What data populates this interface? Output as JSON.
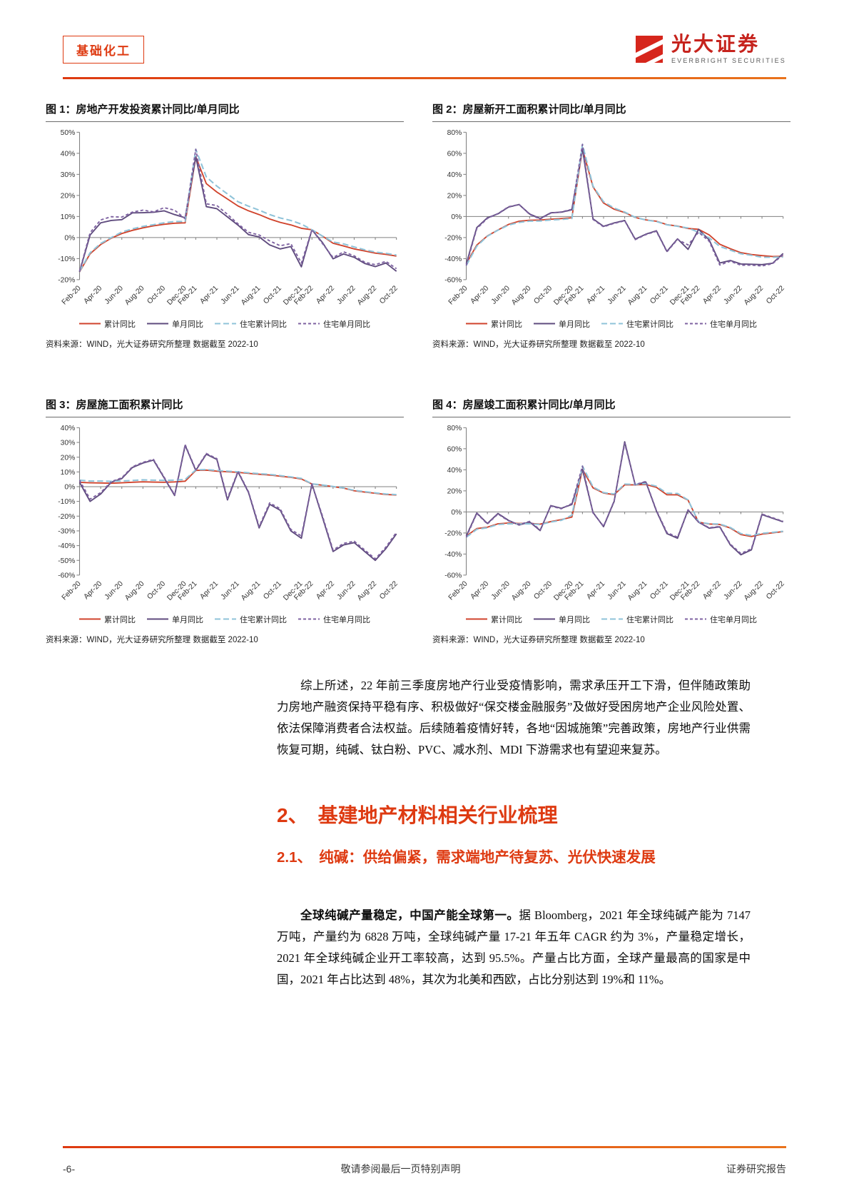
{
  "colors": {
    "accent": "#de3a11",
    "cum": "#d0432c",
    "mon": "#5f4b7e",
    "res_cum": "#8fc3d9",
    "res_mon": "#7e62a1",
    "axis": "#808080"
  },
  "header": {
    "category": "基础化工",
    "brand": "光大证券",
    "brand_sub": "EVERBRIGHT SECURITIES"
  },
  "legend": [
    "累计同比",
    "单月同比",
    "住宅累计同比",
    "住宅单月同比"
  ],
  "x_labels": [
    "Feb-20",
    "Apr-20",
    "Jun-20",
    "Aug-20",
    "Oct-20",
    "Dec-20",
    "Feb-21",
    "Apr-21",
    "Jun-21",
    "Aug-21",
    "Oct-21",
    "Dec-21",
    "Feb-22",
    "Apr-22",
    "Jun-22",
    "Aug-22",
    "Oct-22"
  ],
  "tick_indices": [
    0,
    2,
    4,
    6,
    8,
    10,
    11,
    13,
    15,
    17,
    19,
    21,
    22,
    24,
    26,
    28,
    30
  ],
  "chart_data": [
    {
      "type": "line",
      "title": "图 1：房地产开发投资累计同比/单月同比",
      "source": "资料来源：WIND，光大证券研究所整理    数据截至 2022-10",
      "ylim": [
        -20,
        50
      ],
      "ystep": 10,
      "series": [
        {
          "key": "cum",
          "name": "累计同比",
          "values": [
            -16.3,
            -7.7,
            -3.3,
            -0.3,
            1.9,
            3.4,
            4.6,
            5.6,
            6.3,
            6.8,
            7.0,
            38.3,
            25.6,
            21.6,
            18.3,
            15.0,
            12.7,
            10.9,
            8.8,
            7.2,
            6.0,
            4.4,
            3.7,
            0.7,
            -2.7,
            -4.0,
            -5.4,
            -6.4,
            -7.4,
            -8.0,
            -8.8
          ]
        },
        {
          "key": "mon",
          "name": "单月同比",
          "values": [
            -16.3,
            1.2,
            7.0,
            8.1,
            8.5,
            11.7,
            11.8,
            12.0,
            12.7,
            10.9,
            9.4,
            38.3,
            14.7,
            13.7,
            9.8,
            5.9,
            1.4,
            0.3,
            -3.5,
            -5.4,
            -4.3,
            -13.9,
            3.7,
            -2.4,
            -10.1,
            -7.8,
            -9.4,
            -12.3,
            -13.8,
            -12.1,
            -16.0
          ]
        },
        {
          "key": "res_cum",
          "name": "住宅累计同比",
          "values": [
            -16.0,
            -7.2,
            -2.8,
            0.0,
            2.6,
            4.1,
            5.3,
            6.1,
            7.0,
            7.6,
            7.6,
            41.9,
            28.8,
            24.4,
            20.7,
            17.0,
            14.9,
            13.0,
            10.9,
            9.3,
            8.1,
            6.4,
            3.7,
            0.7,
            -2.1,
            -3.0,
            -4.5,
            -5.8,
            -6.9,
            -7.5,
            -8.3
          ]
        },
        {
          "key": "res_mon",
          "name": "住宅单月同比",
          "values": [
            -16.0,
            2.3,
            8.4,
            9.9,
            9.7,
            12.1,
            13.0,
            12.2,
            14.2,
            13.0,
            8.9,
            41.9,
            16.0,
            15.2,
            11.0,
            6.5,
            2.5,
            1.2,
            -1.6,
            -3.9,
            -2.9,
            -12.1,
            3.7,
            -2.9,
            -9.5,
            -6.8,
            -8.7,
            -11.7,
            -12.9,
            -11.3,
            -14.8
          ]
        }
      ]
    },
    {
      "type": "line",
      "title": "图 2：房屋新开工面积累计同比/单月同比",
      "source": "资料来源：WIND，光大证券研究所整理    数据截至 2022-10",
      "ylim": [
        -60,
        80
      ],
      "ystep": 20,
      "series": [
        {
          "key": "cum",
          "name": "累计同比",
          "values": [
            -44.9,
            -27.2,
            -18.4,
            -12.8,
            -7.6,
            -4.5,
            -3.6,
            -3.4,
            -2.6,
            -2.0,
            -1.2,
            64.3,
            28.2,
            12.8,
            6.9,
            3.8,
            -0.9,
            -3.2,
            -4.5,
            -7.7,
            -9.1,
            -11.4,
            -12.2,
            -17.5,
            -26.3,
            -30.6,
            -34.4,
            -36.1,
            -37.2,
            -38.0,
            -37.8
          ]
        },
        {
          "key": "mon",
          "name": "单月同比",
          "values": [
            -44.9,
            -10.5,
            -1.3,
            2.5,
            8.9,
            11.3,
            2.4,
            -1.9,
            3.5,
            4.1,
            6.3,
            64.3,
            -2.2,
            -9.3,
            -6.1,
            -3.8,
            -21.5,
            -16.8,
            -13.5,
            -33.1,
            -21.2,
            -31.2,
            -12.2,
            -22.3,
            -44.2,
            -41.8,
            -45.1,
            -45.4,
            -45.7,
            -44.4,
            -35.1
          ]
        },
        {
          "key": "res_cum",
          "name": "住宅累计同比",
          "values": [
            -46.5,
            -28.2,
            -18.7,
            -13.0,
            -8.2,
            -5.6,
            -4.4,
            -4.3,
            -3.3,
            -2.8,
            -1.9,
            68.5,
            28.9,
            14.0,
            8.0,
            4.2,
            -0.8,
            -3.3,
            -4.8,
            -7.9,
            -9.3,
            -10.9,
            -14.9,
            -20.3,
            -28.4,
            -31.9,
            -35.4,
            -36.8,
            -38.7,
            -38.7,
            -38.5
          ]
        },
        {
          "key": "res_mon",
          "name": "住宅单月同比",
          "values": [
            -46.5,
            -11.5,
            -1.8,
            2.8,
            9.2,
            11.5,
            2.0,
            -2.4,
            3.2,
            4.3,
            6.8,
            68.5,
            -2.8,
            -9.8,
            -6.5,
            -4.1,
            -22.0,
            -17.2,
            -14.0,
            -33.6,
            -21.8,
            -27.0,
            -14.9,
            -23.5,
            -46.1,
            -42.5,
            -46.3,
            -46.2,
            -47.0,
            -44.8,
            -36.2
          ]
        }
      ]
    },
    {
      "type": "line",
      "title": "图 3：房屋施工面积累计同比",
      "source": "资料来源：WIND，光大证券研究所整理    数据截至 2022-10",
      "ylim": [
        -60,
        40
      ],
      "ystep": 10,
      "series": [
        {
          "key": "cum",
          "name": "累计同比",
          "values": [
            2.9,
            2.6,
            2.5,
            2.3,
            2.6,
            3.0,
            3.3,
            3.1,
            3.0,
            3.2,
            3.7,
            11.0,
            11.2,
            10.5,
            10.1,
            9.7,
            9.0,
            8.4,
            7.9,
            7.1,
            6.3,
            5.2,
            1.8,
            1.0,
            0.0,
            -1.0,
            -2.8,
            -3.7,
            -4.5,
            -5.3,
            -5.7
          ]
        },
        {
          "key": "mon",
          "name": "单月同比",
          "values": [
            2.9,
            -10.0,
            -5.0,
            3.0,
            5.5,
            13.0,
            16.0,
            18.0,
            6.0,
            -6.0,
            28.0,
            11.0,
            22.0,
            18.5,
            -9.0,
            10.0,
            -4.0,
            -28.0,
            -12.0,
            -16.0,
            -30.0,
            -35.0,
            1.8,
            -21.0,
            -44.0,
            -39.5,
            -38.0,
            -44.0,
            -50.0,
            -42.0,
            -32.0
          ]
        },
        {
          "key": "res_cum",
          "name": "住宅累计同比",
          "values": [
            4.4,
            3.8,
            3.8,
            3.6,
            3.8,
            4.2,
            4.6,
            4.4,
            4.3,
            4.4,
            4.9,
            11.4,
            11.6,
            11.0,
            10.5,
            10.1,
            9.4,
            8.8,
            8.3,
            7.5,
            6.6,
            5.6,
            1.9,
            1.1,
            0.1,
            -0.9,
            -2.5,
            -3.4,
            -4.2,
            -5.0,
            -5.4
          ]
        },
        {
          "key": "res_mon",
          "name": "住宅单月同比",
          "values": [
            4.4,
            -8.5,
            -4.0,
            3.4,
            6.0,
            13.5,
            16.5,
            18.5,
            6.5,
            -5.5,
            28.5,
            11.5,
            22.5,
            19.0,
            -8.0,
            10.5,
            -3.5,
            -27.0,
            -11.0,
            -15.0,
            -29.0,
            -33.5,
            1.9,
            -20.0,
            -43.0,
            -38.5,
            -37.0,
            -43.0,
            -49.0,
            -41.0,
            -31.0
          ]
        }
      ]
    },
    {
      "type": "line",
      "title": "图 4：房屋竣工面积累计同比/单月同比",
      "source": "资料来源：WIND，光大证券研究所整理    数据截至 2022-10",
      "ylim": [
        -60,
        80
      ],
      "ystep": 20,
      "series": [
        {
          "key": "cum",
          "name": "累计同比",
          "values": [
            -22.9,
            -15.8,
            -14.5,
            -11.3,
            -10.5,
            -10.9,
            -10.8,
            -11.6,
            -9.2,
            -7.3,
            -4.9,
            40.4,
            22.9,
            17.9,
            16.4,
            25.7,
            25.7,
            26.0,
            23.4,
            16.3,
            16.2,
            11.2,
            -9.8,
            -11.5,
            -11.9,
            -15.3,
            -21.5,
            -23.3,
            -21.1,
            -19.9,
            -18.7
          ]
        },
        {
          "key": "mon",
          "name": "单月同比",
          "values": [
            -22.9,
            -1.0,
            -11.0,
            -1.5,
            -8.0,
            -12.5,
            -9.5,
            -17.7,
            6.0,
            3.5,
            7.0,
            40.4,
            -0.5,
            -14.0,
            10.0,
            66.6,
            25.7,
            28.4,
            1.0,
            -20.6,
            -25.0,
            1.9,
            -9.8,
            -15.5,
            -14.2,
            -31.3,
            -40.7,
            -36.0,
            -2.5,
            -6.0,
            -9.4
          ]
        },
        {
          "key": "res_cum",
          "name": "住宅累计同比",
          "values": [
            -24.0,
            -16.5,
            -15.0,
            -12.0,
            -11.2,
            -11.4,
            -11.2,
            -12.0,
            -9.6,
            -8.0,
            -3.1,
            43.5,
            23.7,
            18.3,
            17.0,
            26.4,
            26.2,
            26.8,
            24.4,
            17.8,
            17.5,
            11.3,
            -9.6,
            -11.3,
            -11.5,
            -14.8,
            -20.6,
            -22.4,
            -20.4,
            -19.4,
            -18.4
          ]
        },
        {
          "key": "res_mon",
          "name": "住宅单月同比",
          "values": [
            -24.0,
            -1.5,
            -11.5,
            -2.0,
            -8.5,
            -12.0,
            -9.0,
            -17.0,
            5.5,
            3.0,
            8.0,
            43.5,
            -1.0,
            -13.5,
            10.5,
            65.0,
            26.0,
            29.0,
            1.5,
            -19.5,
            -24.0,
            2.0,
            -9.6,
            -15.0,
            -13.8,
            -30.5,
            -39.5,
            -35.0,
            -2.0,
            -5.5,
            -9.0
          ]
        }
      ]
    }
  ],
  "body": {
    "p1": "综上所述，22 年前三季度房地产行业受疫情影响，需求承压开工下滑，但伴随政策助力房地产融资保持平稳有序、积极做好“保交楼金融服务”及做好受困房地产企业风险处置、依法保障消费者合法权益。后续随着疫情好转，各地“因城施策”完善政策，房地产行业供需恢复可期，纯碱、钛白粉、PVC、减水剂、MDI 下游需求也有望迎来复苏。",
    "h2": "2、　基建地产材料相关行业梳理",
    "h21": "2.1、　纯碱：供给偏紧，需求端地产待复苏、光伏快速发展",
    "p2_bold": "全球纯碱产量稳定，中国产能全球第一。",
    "p2_rest": "据 Bloomberg，2021 年全球纯碱产能为 7147 万吨，产量约为 6828 万吨，全球纯碱产量 17-21 年五年 CAGR 约为 3%，产量稳定增长，2021 年全球纯碱企业开工率较高，达到 95.5%。产量占比方面，全球产量最高的国家是中国，2021 年占比达到 48%，其次为北美和西欧，占比分别达到 19%和 11%。"
  },
  "footer": {
    "left": "敬请参阅最后一页特别声明",
    "center": "-6-",
    "right": "证券研究报告"
  }
}
